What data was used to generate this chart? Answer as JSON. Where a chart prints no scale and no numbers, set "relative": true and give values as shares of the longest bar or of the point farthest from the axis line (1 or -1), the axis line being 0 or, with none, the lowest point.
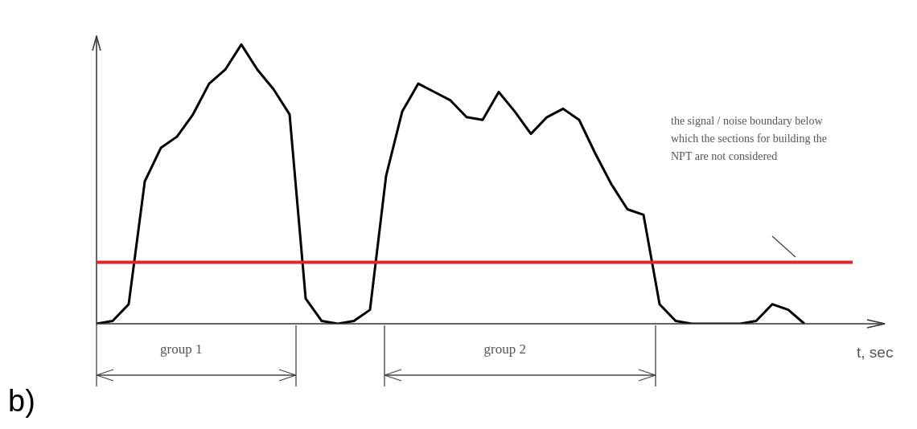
{
  "chart_data": {
    "type": "line",
    "relative": true,
    "xlabel": "t, sec",
    "marker": "none",
    "categories": [
      null,
      null,
      null,
      null,
      null,
      null,
      null,
      null,
      null,
      null,
      null,
      null,
      null,
      null,
      null,
      null,
      null,
      null,
      null,
      null,
      null,
      null,
      null,
      null,
      null,
      null,
      null,
      null,
      null,
      null,
      null,
      null,
      null,
      null,
      null,
      null,
      null,
      null,
      null,
      null,
      null,
      null,
      null,
      null,
      null,
      null,
      null,
      null,
      null,
      null
    ],
    "series": [
      {
        "color": "#000000",
        "values": [
          0,
          0.01,
          0.07,
          0.51,
          0.63,
          0.67,
          0.75,
          0.86,
          0.91,
          1,
          0.91,
          0.84,
          0.75,
          0.09,
          0.01,
          0,
          0.01,
          0.05,
          0.53,
          0.76,
          0.86,
          0.83,
          0.8,
          0.74,
          0.73,
          0.83,
          0.76,
          0.68,
          0.74,
          0.77,
          0.73,
          0.61,
          0.5,
          0.41,
          0.39,
          0.07,
          0.01,
          0,
          0,
          0,
          0,
          0.01,
          0.07,
          0.05,
          0,
          null,
          null,
          null,
          null,
          null
        ]
      }
    ],
    "ref_lines": [
      {
        "axis": "y",
        "value": 0.22,
        "color": "#e0262b"
      }
    ],
    "annotations": [
      "group 1",
      "group 2",
      "the signal / noise boundary below which the sections for building the NPT are not considered",
      "b)"
    ]
  }
}
